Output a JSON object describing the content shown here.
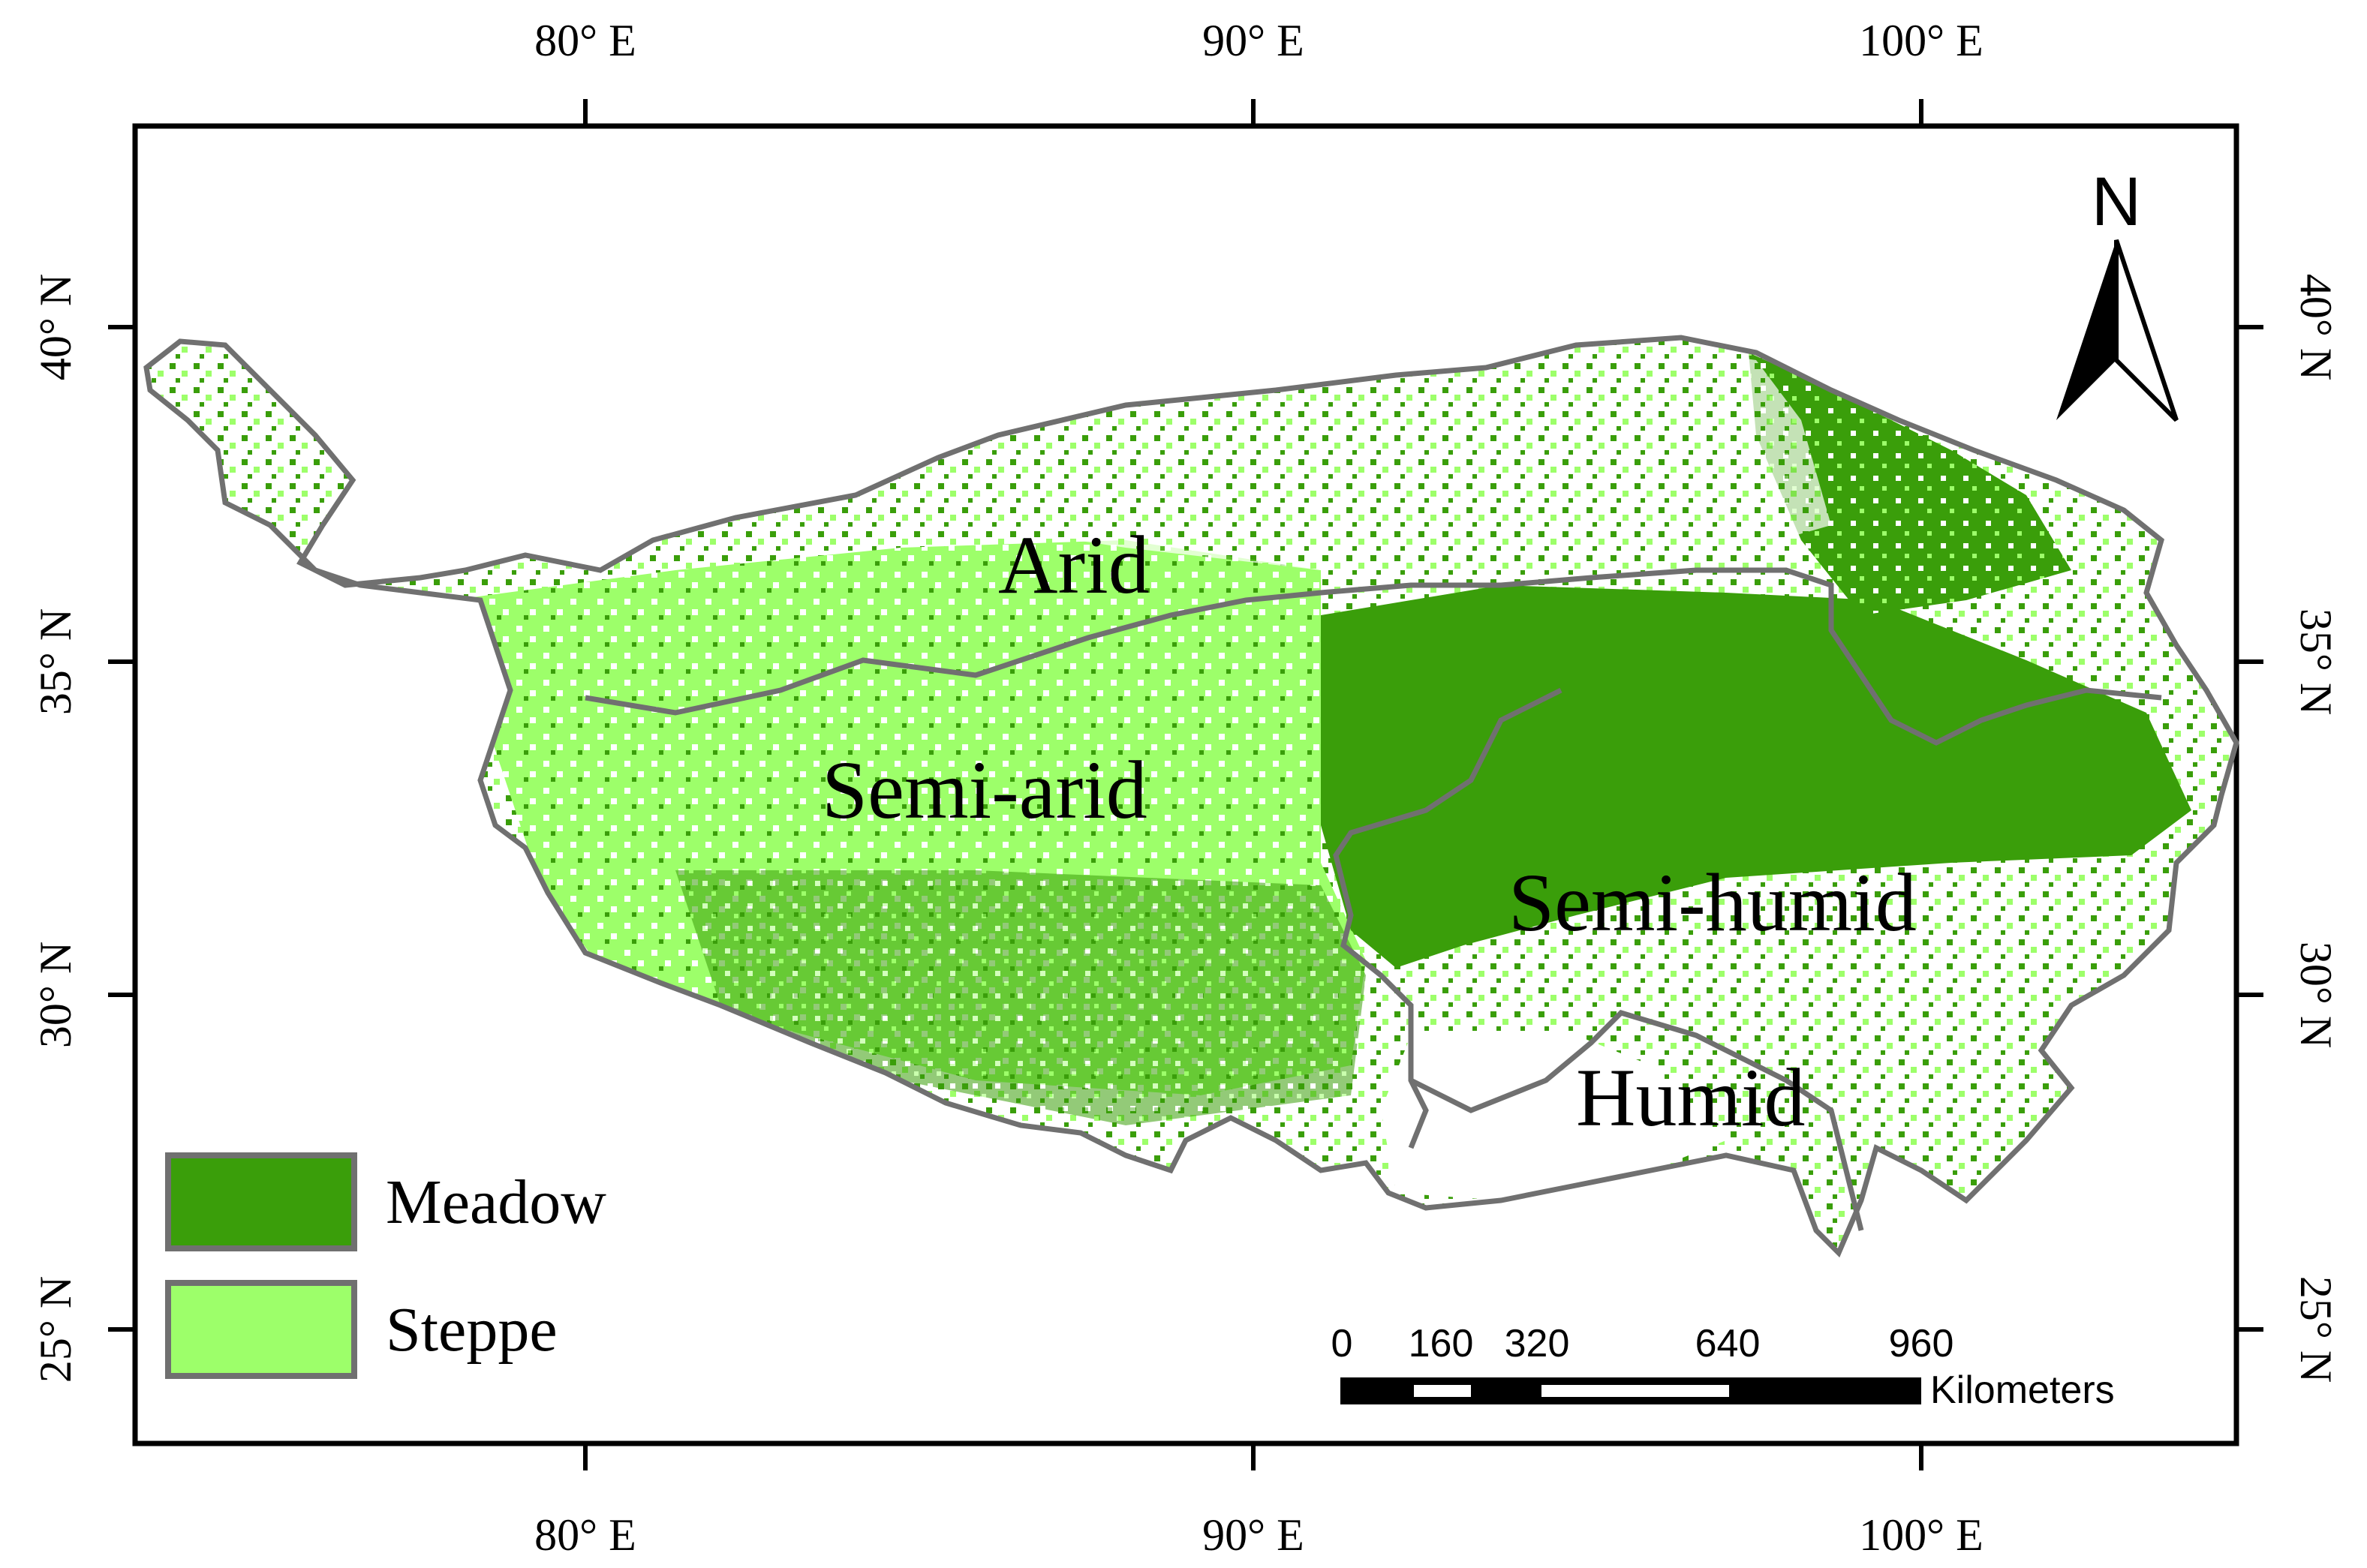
{
  "map": {
    "lon_ticks": [
      "80° E",
      "90° E",
      "100° E"
    ],
    "lat_ticks": [
      "40° N",
      "35° N",
      "30° N",
      "25° N"
    ],
    "zones": [
      "Arid",
      "Semi-arid",
      "Semi-humid",
      "Humid"
    ],
    "north_label": "N",
    "legend": [
      {
        "label": "Meadow",
        "color": "#3a9e0a"
      },
      {
        "label": "Steppe",
        "color": "#9dff6a"
      }
    ],
    "scale_bar": {
      "ticks": [
        "0",
        "160",
        "320",
        "640",
        "960"
      ],
      "unit": "Kilometers"
    },
    "colors": {
      "meadow": "#3a9e0a",
      "steppe": "#9dff6a",
      "boundary": "#707070",
      "frame": "#000000"
    }
  }
}
